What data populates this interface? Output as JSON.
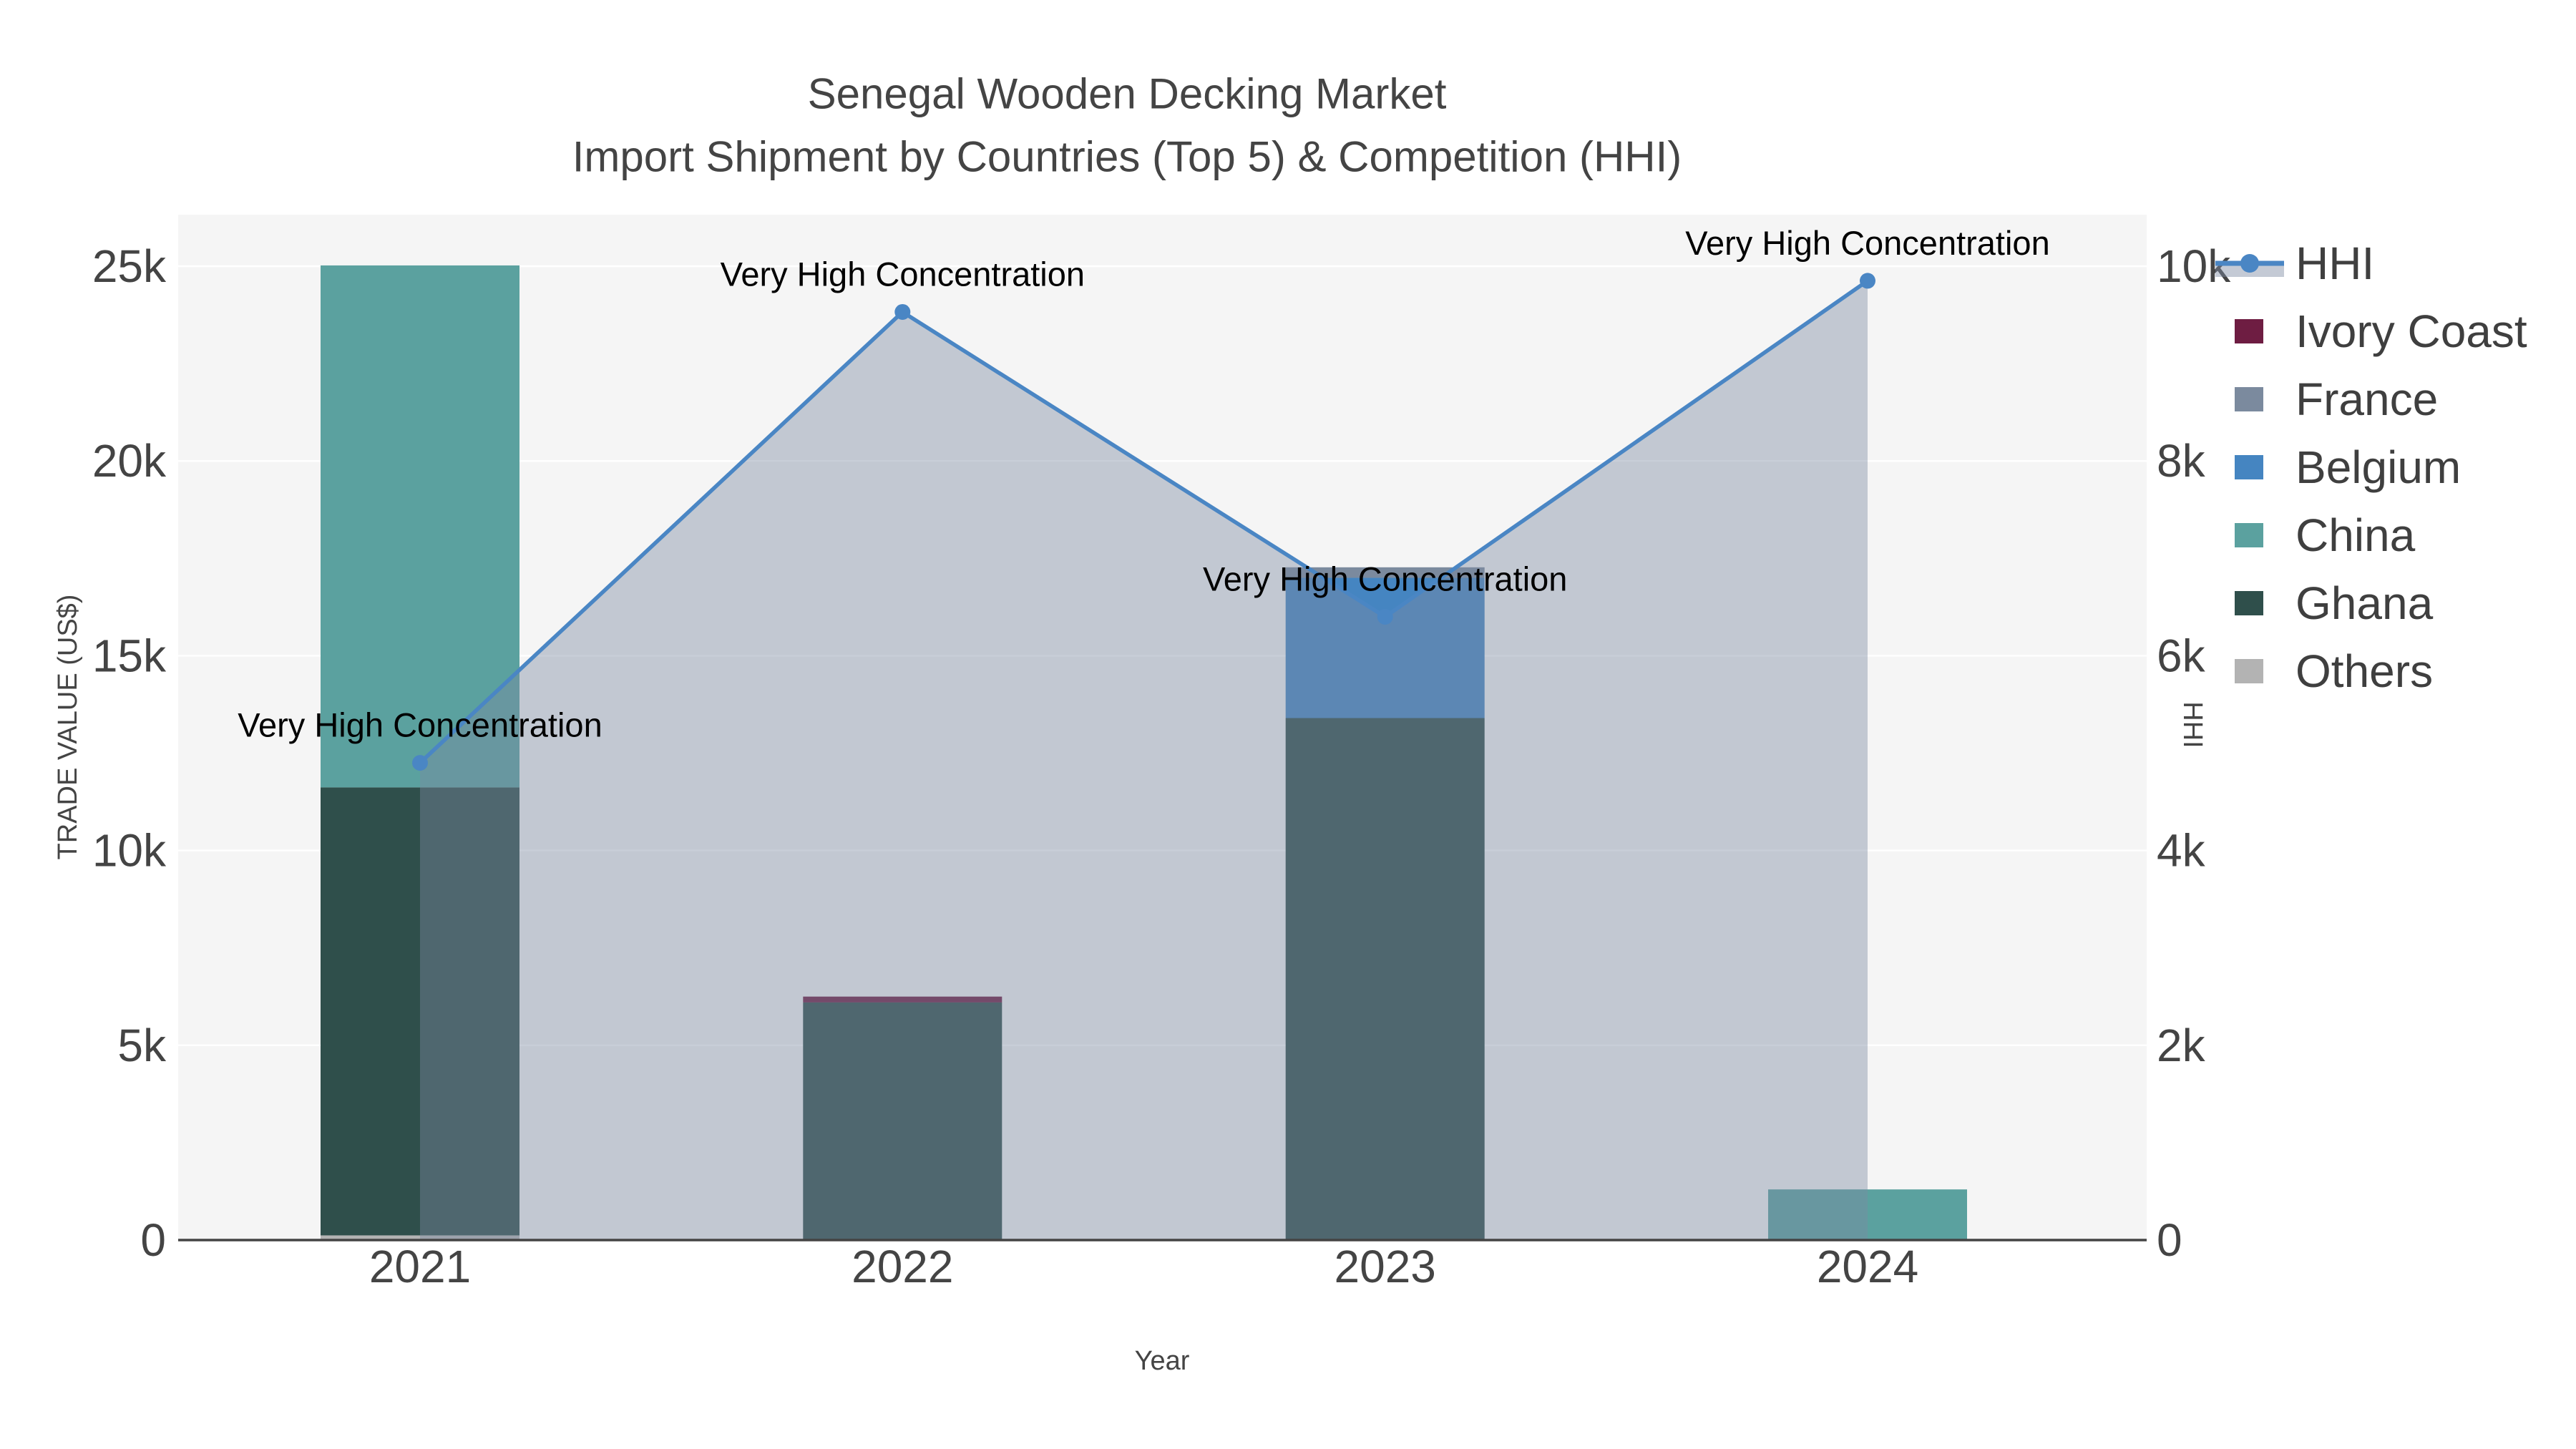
{
  "title": {
    "line1": "Senegal Wooden Decking Market",
    "line2": "Import Shipment by Countries (Top 5) & Competition (HHI)"
  },
  "axes": {
    "left": {
      "title": "TRADE VALUE (US$)",
      "ticks": [
        {
          "value": 0,
          "label": "0"
        },
        {
          "value": 5000,
          "label": "5k"
        },
        {
          "value": 10000,
          "label": "10k"
        },
        {
          "value": 15000,
          "label": "15k"
        },
        {
          "value": 20000,
          "label": "20k"
        },
        {
          "value": 25000,
          "label": "25k"
        }
      ]
    },
    "right": {
      "title": "HHI",
      "ticks": [
        {
          "value": 0,
          "label": "0"
        },
        {
          "value": 2000,
          "label": "2k"
        },
        {
          "value": 4000,
          "label": "4k"
        },
        {
          "value": 6000,
          "label": "6k"
        },
        {
          "value": 8000,
          "label": "8k"
        },
        {
          "value": 10000,
          "label": "10k"
        }
      ]
    },
    "x": {
      "title": "Year",
      "categories": [
        "2021",
        "2022",
        "2023",
        "2024"
      ]
    }
  },
  "legend": {
    "items": [
      {
        "label": "HHI",
        "type": "line",
        "color": "#4a86c4",
        "band": "rgba(124,138,161,0.45)"
      },
      {
        "label": "Ivory Coast",
        "type": "swatch",
        "color": "#6e1d42"
      },
      {
        "label": "France",
        "type": "swatch",
        "color": "#7b8a9e"
      },
      {
        "label": "Belgium",
        "type": "swatch",
        "color": "#4585c1"
      },
      {
        "label": "China",
        "type": "swatch",
        "color": "#5ba19f"
      },
      {
        "label": "Ghana",
        "type": "swatch",
        "color": "#2f4f4b"
      },
      {
        "label": "Others",
        "type": "swatch",
        "color": "#b3b3b3"
      }
    ]
  },
  "chart_data": {
    "type": "combo",
    "bar_mode": "stacked",
    "categories": [
      "2021",
      "2022",
      "2023",
      "2024"
    ],
    "bar_value_unit": "US$",
    "series": [
      {
        "name": "Ivory Coast",
        "color": "#6e1d42",
        "values": [
          0,
          150,
          0,
          0
        ]
      },
      {
        "name": "France",
        "color": "#7b8a9e",
        "values": [
          0,
          0,
          270,
          0
        ]
      },
      {
        "name": "Belgium",
        "color": "#4585c1",
        "values": [
          0,
          0,
          3600,
          0
        ]
      },
      {
        "name": "China",
        "color": "#5ba19f",
        "values": [
          13400,
          0,
          0,
          1300
        ]
      },
      {
        "name": "Ghana",
        "color": "#2f4f4b",
        "values": [
          11500,
          6100,
          13400,
          0
        ]
      },
      {
        "name": "Others",
        "color": "#b3b3b3",
        "values": [
          120,
          0,
          0,
          0
        ]
      }
    ],
    "stack_order_bottom_to_top": [
      "Others",
      "Ghana",
      "China",
      "Belgium",
      "France",
      "Ivory Coast"
    ],
    "line_series": {
      "name": "HHI",
      "values": [
        4900,
        9530,
        6400,
        9850
      ],
      "color": "#4a86c4",
      "fill": "rgba(124,138,161,0.42)"
    },
    "annotations": {
      "label": "Very High Concentration",
      "at_categories": [
        "2021",
        "2022",
        "2023",
        "2024"
      ]
    },
    "left_axis_range": [
      0,
      26300
    ],
    "right_axis_range": [
      0,
      10520
    ],
    "grid": true,
    "legend_position": "right",
    "plot_bgcolor": "#f5f5f5",
    "grid_color": "#ffffff",
    "axis_line_color": "#444444",
    "text_color": "#444444",
    "annotation_color": "#000000"
  }
}
